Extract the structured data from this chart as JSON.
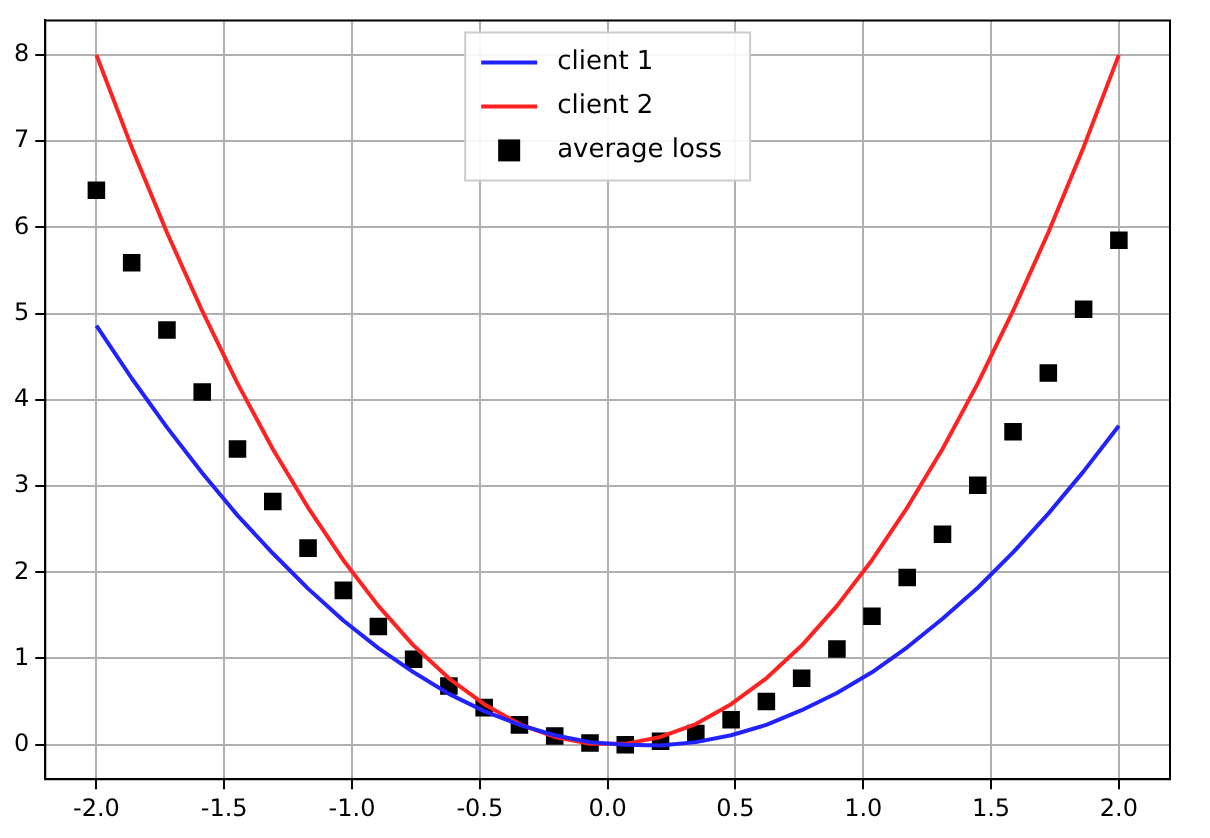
{
  "chart_data": {
    "type": "line",
    "x": [
      -2,
      -1.862,
      -1.724,
      -1.586,
      -1.448,
      -1.31,
      -1.172,
      -1.034,
      -0.897,
      -0.759,
      -0.621,
      -0.483,
      -0.345,
      -0.207,
      -0.069,
      0.069,
      0.207,
      0.345,
      0.483,
      0.621,
      0.759,
      0.897,
      1.034,
      1.172,
      1.31,
      1.448,
      1.586,
      1.724,
      1.862,
      2
    ],
    "series": [
      {
        "name": "client 1",
        "color": "#2222ff",
        "values": [
          4.86,
          4.25,
          3.68,
          3.15,
          2.66,
          2.22,
          1.81,
          1.44,
          1.12,
          0.84,
          0.59,
          0.39,
          0.23,
          0.11,
          0.03,
          0,
          -0.01,
          0.03,
          0.11,
          0.23,
          0.4,
          0.6,
          0.84,
          1.13,
          1.46,
          1.82,
          2.23,
          2.68,
          3.17,
          3.7
        ]
      },
      {
        "name": "client 2",
        "color": "#ff2222",
        "values": [
          8,
          6.93,
          5.94,
          5.03,
          4.19,
          3.43,
          2.75,
          2.14,
          1.61,
          1.15,
          0.77,
          0.47,
          0.24,
          0.09,
          0.01,
          0.01,
          0.09,
          0.24,
          0.47,
          0.77,
          1.15,
          1.61,
          2.14,
          2.75,
          3.43,
          4.19,
          5.03,
          5.94,
          6.93,
          8
        ]
      },
      {
        "name": "average loss",
        "type": "scatter",
        "marker": "square",
        "color": "#000000",
        "values": [
          6.43,
          5.59,
          4.81,
          4.09,
          3.43,
          2.82,
          2.28,
          1.79,
          1.37,
          0.99,
          0.68,
          0.43,
          0.23,
          0.1,
          0.02,
          0,
          0.04,
          0.13,
          0.29,
          0.5,
          0.77,
          1.11,
          1.49,
          1.94,
          2.44,
          3.01,
          3.63,
          4.31,
          5.05,
          5.85
        ]
      }
    ],
    "xlim": [
      -2.2,
      2.2
    ],
    "xticks": [
      {
        "value": -2,
        "label": "-2.0"
      },
      {
        "value": -1.5,
        "label": "-1.5"
      },
      {
        "value": -1,
        "label": "-1.0"
      },
      {
        "value": -0.5,
        "label": "-0.5"
      },
      {
        "value": 0,
        "label": "0.0"
      },
      {
        "value": 0.5,
        "label": "0.5"
      },
      {
        "value": 1,
        "label": "1.0"
      },
      {
        "value": 1.5,
        "label": "1.5"
      },
      {
        "value": 2,
        "label": "2.0"
      }
    ],
    "ylim": [
      -0.4,
      8.4
    ],
    "yticks": [
      0,
      1,
      2,
      3,
      4,
      5,
      6,
      7,
      8
    ],
    "grid": true,
    "legend": "top"
  }
}
